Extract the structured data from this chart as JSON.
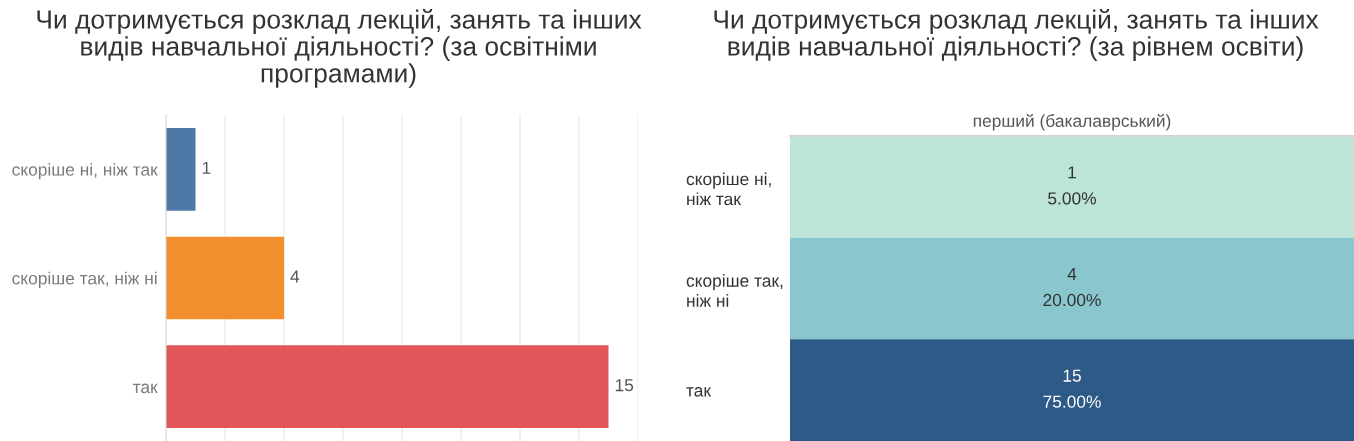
{
  "chart_data": [
    {
      "type": "bar",
      "orientation": "horizontal",
      "title": "Чи дотримується розклад лекцій, занять та інших\nвидів навчальної діяльності? (за освітніми\nпрограмами)",
      "categories": [
        "скоріше ні, ніж так",
        "скоріше так, ніж ні",
        "так"
      ],
      "values": [
        1,
        4,
        15
      ],
      "value_labels": [
        "1",
        "4",
        "15"
      ],
      "colors": [
        "#4e79a7",
        "#f28e2b",
        "#e15759"
      ],
      "xlim": [
        0,
        16
      ],
      "xticks": [
        {
          "value": 0,
          "label": null
        },
        {
          "value": 2,
          "label": null
        },
        {
          "value": 4,
          "label": null
        },
        {
          "value": 6,
          "label": null
        },
        {
          "value": 8,
          "label": null
        },
        {
          "value": 10,
          "label": null
        },
        {
          "value": 12,
          "label": null
        },
        {
          "value": 14,
          "label": null
        },
        {
          "value": 16,
          "label": null
        }
      ],
      "grid": "x",
      "tick_labels": "y"
    },
    {
      "type": "heatmap",
      "title": "Чи дотримується розклад лекцій, занять та інших\nвидів навчальної діяльності? (за рівнем освіти)",
      "categories": [
        "перший (бакалаврський)"
      ],
      "y_categories": [
        "скоріше ні,\nніж так",
        "скоріше так,\nніж ні",
        "так"
      ],
      "cells": [
        [
          1
        ],
        [
          4
        ],
        [
          15
        ]
      ],
      "data_labels": true,
      "colors": [
        "#bde4d9",
        "#8ac6cd",
        "#2d5a87"
      ],
      "annotations": [
        "5.00%",
        "20.00%",
        "75.00%"
      ]
    }
  ]
}
